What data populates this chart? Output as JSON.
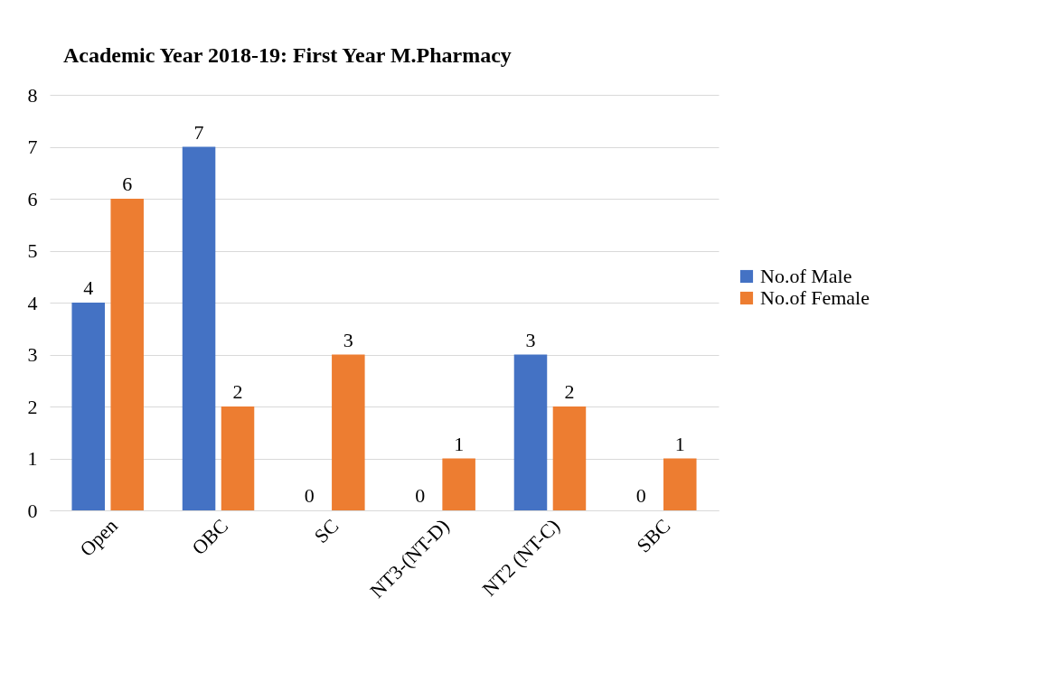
{
  "chart_data": {
    "type": "bar",
    "title": "Academic Year 2018-19: First Year M.Pharmacy",
    "categories": [
      "Open",
      "OBC",
      "SC",
      "NT3-(NT-D)",
      "NT2 (NT-C)",
      "SBC"
    ],
    "series": [
      {
        "name": "No.of Male",
        "color": "#4472c4",
        "values": [
          4,
          7,
          0,
          0,
          3,
          0
        ]
      },
      {
        "name": "No.of Female",
        "color": "#ed7d31",
        "values": [
          6,
          2,
          3,
          1,
          2,
          1
        ]
      }
    ],
    "ylim": [
      0,
      8
    ],
    "yticks": [
      0,
      1,
      2,
      3,
      4,
      5,
      6,
      7,
      8
    ],
    "grid": "y",
    "legend": "right",
    "data_labels": true
  }
}
